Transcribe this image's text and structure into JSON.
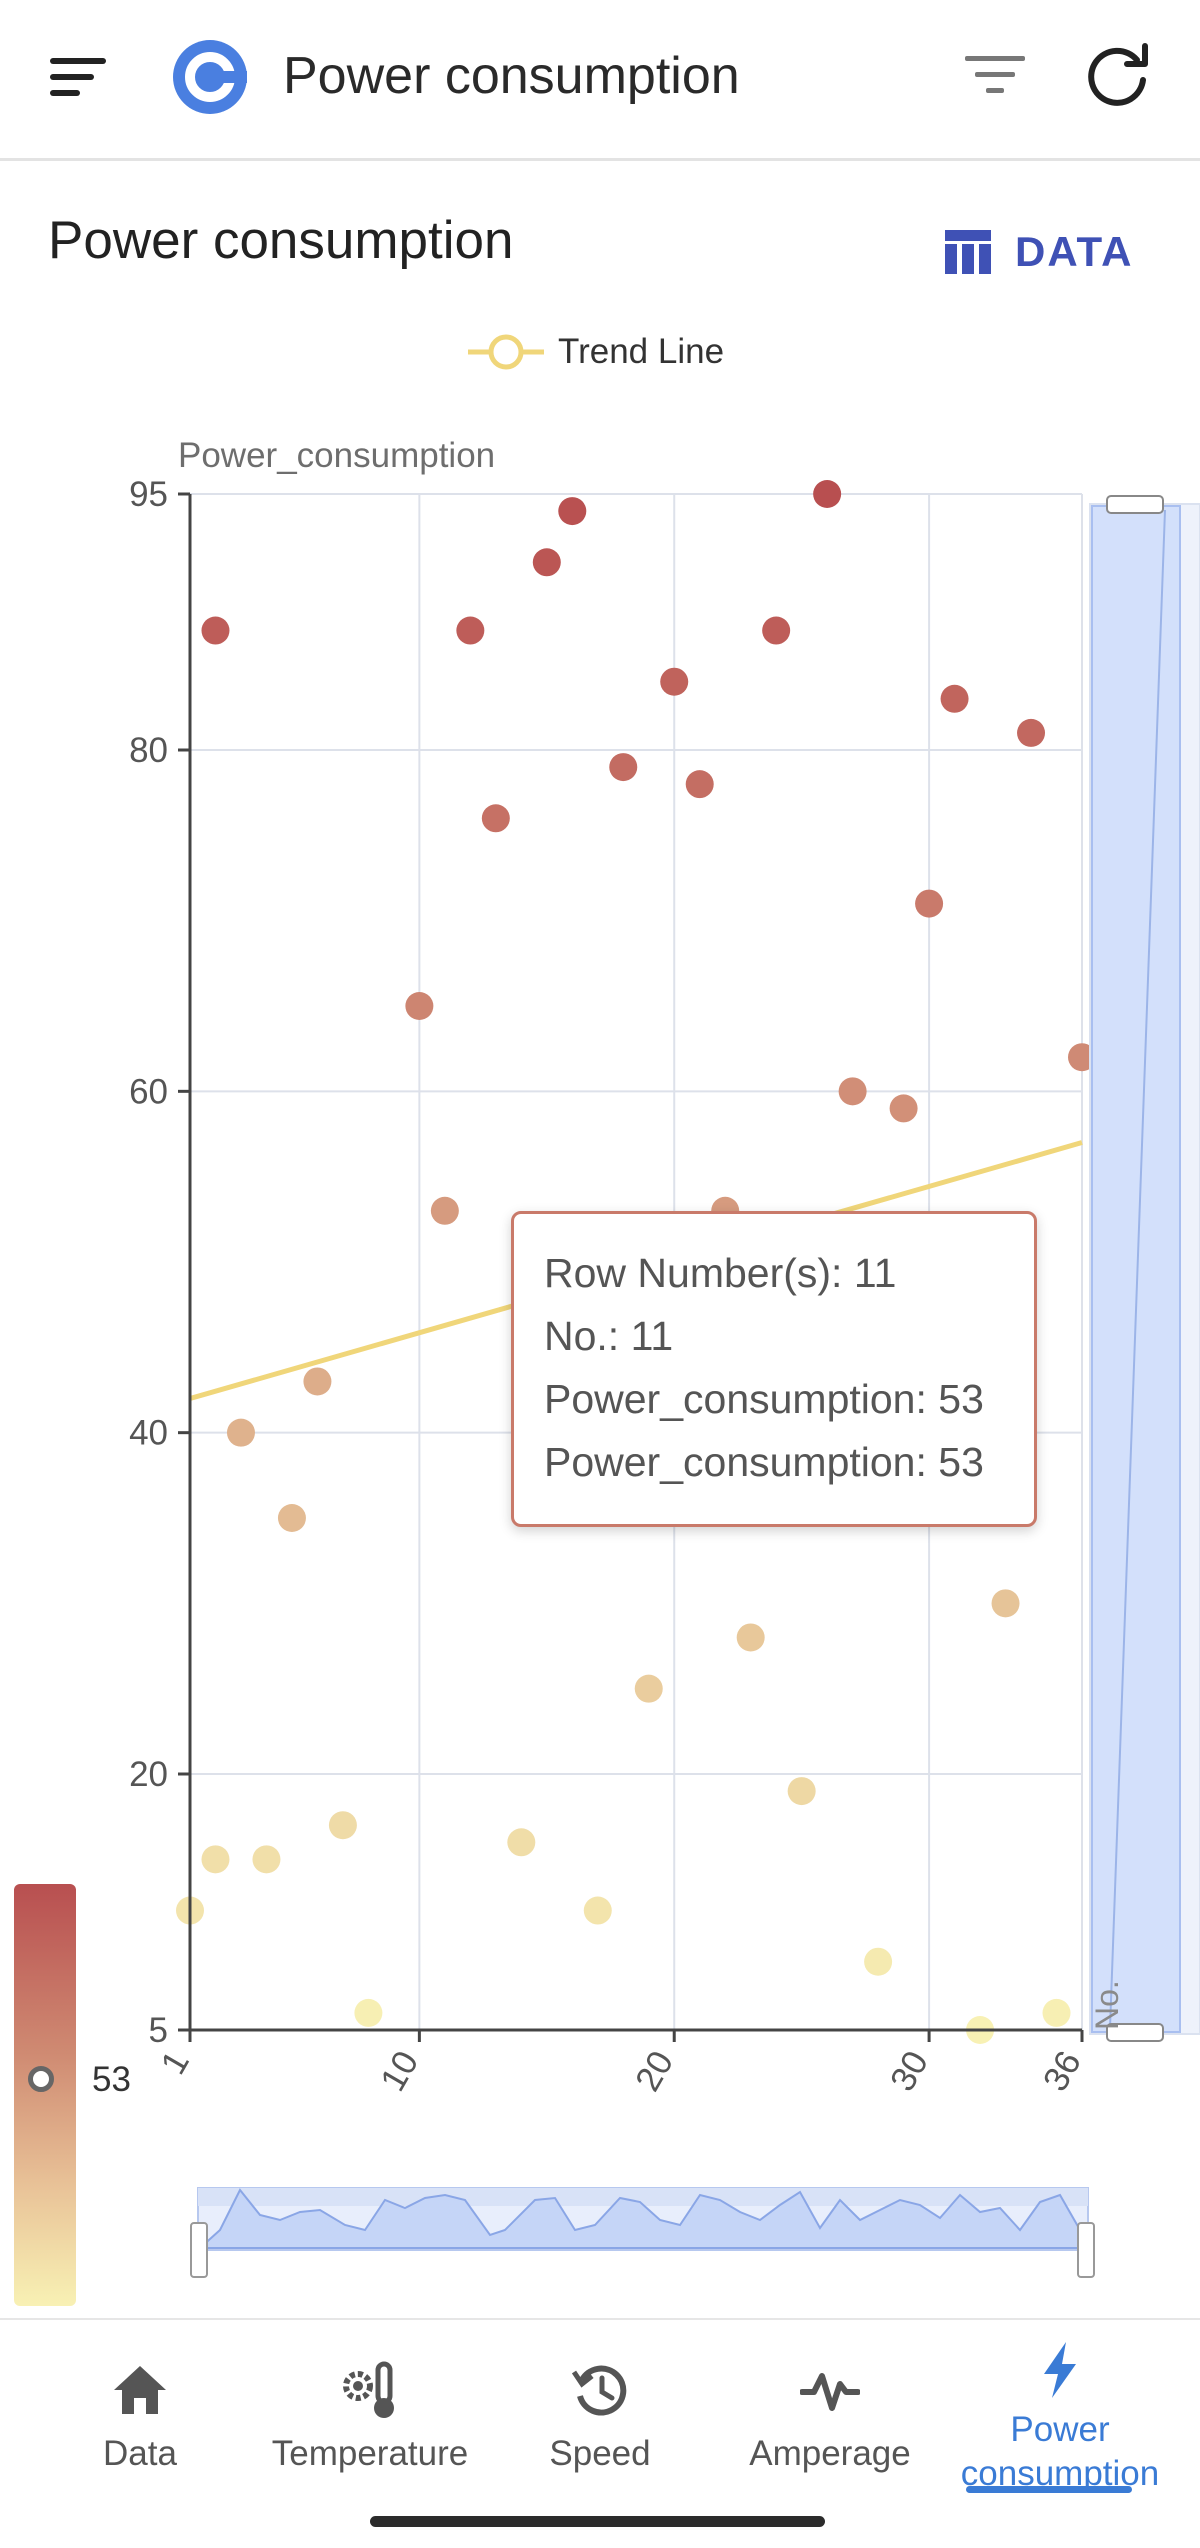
{
  "app": {
    "title": "Power consumption",
    "icons": {
      "menu": "menu-icon",
      "logo": "app-logo-icon",
      "filter": "filter-icon",
      "refresh": "refresh-icon"
    }
  },
  "card": {
    "title": "Power consumption",
    "data_button": "DATA"
  },
  "legend": {
    "trend_line": "Trend Line"
  },
  "tooltip": {
    "row_number": "Row Number(s): 11",
    "no": "No.: 11",
    "power1": "Power_consumption: 53",
    "power2": "Power_consumption: 53"
  },
  "visual_map": {
    "value": "53",
    "colors": [
      "#f8f1b4",
      "#b84f50"
    ]
  },
  "chart_data": {
    "type": "scatter",
    "ylabel": "Power_consumption",
    "xlabel": "No.",
    "xlim": [
      1,
      36
    ],
    "ylim": [
      5,
      95
    ],
    "x_ticks": [
      1,
      10,
      20,
      30,
      36
    ],
    "y_ticks": [
      5,
      20,
      40,
      60,
      80,
      95
    ],
    "points": [
      {
        "x": 1,
        "y": 12
      },
      {
        "x": 2,
        "y": 87
      },
      {
        "x": 2,
        "y": 15
      },
      {
        "x": 3,
        "y": 40
      },
      {
        "x": 4,
        "y": 15
      },
      {
        "x": 5,
        "y": 35
      },
      {
        "x": 6,
        "y": 43
      },
      {
        "x": 7,
        "y": 17
      },
      {
        "x": 8,
        "y": 6
      },
      {
        "x": 10,
        "y": 65
      },
      {
        "x": 11,
        "y": 53
      },
      {
        "x": 12,
        "y": 87
      },
      {
        "x": 13,
        "y": 76
      },
      {
        "x": 14,
        "y": 16
      },
      {
        "x": 15,
        "y": 91
      },
      {
        "x": 16,
        "y": 94
      },
      {
        "x": 17,
        "y": 12
      },
      {
        "x": 18,
        "y": 79
      },
      {
        "x": 19,
        "y": 25
      },
      {
        "x": 20,
        "y": 84
      },
      {
        "x": 21,
        "y": 78
      },
      {
        "x": 22,
        "y": 53
      },
      {
        "x": 23,
        "y": 28
      },
      {
        "x": 24,
        "y": 87
      },
      {
        "x": 25,
        "y": 19
      },
      {
        "x": 26,
        "y": 95
      },
      {
        "x": 27,
        "y": 60
      },
      {
        "x": 28,
        "y": 9
      },
      {
        "x": 29,
        "y": 59
      },
      {
        "x": 30,
        "y": 71
      },
      {
        "x": 31,
        "y": 83
      },
      {
        "x": 32,
        "y": 5
      },
      {
        "x": 33,
        "y": 30
      },
      {
        "x": 34,
        "y": 81
      },
      {
        "x": 35,
        "y": 6
      },
      {
        "x": 36,
        "y": 62
      }
    ],
    "trend_line": {
      "x": [
        1,
        36
      ],
      "y": [
        42,
        57
      ],
      "color": "#f0d67a"
    },
    "grid": true
  },
  "bottom_nav": [
    {
      "label": "Data",
      "icon": "home-icon"
    },
    {
      "label": "Temperature",
      "icon": "thermometer-gear-icon"
    },
    {
      "label": "Speed",
      "icon": "history-icon"
    },
    {
      "label": "Amperage",
      "icon": "pulse-icon"
    },
    {
      "label": "Power consumption",
      "icon": "bolt-icon",
      "active": true
    }
  ]
}
